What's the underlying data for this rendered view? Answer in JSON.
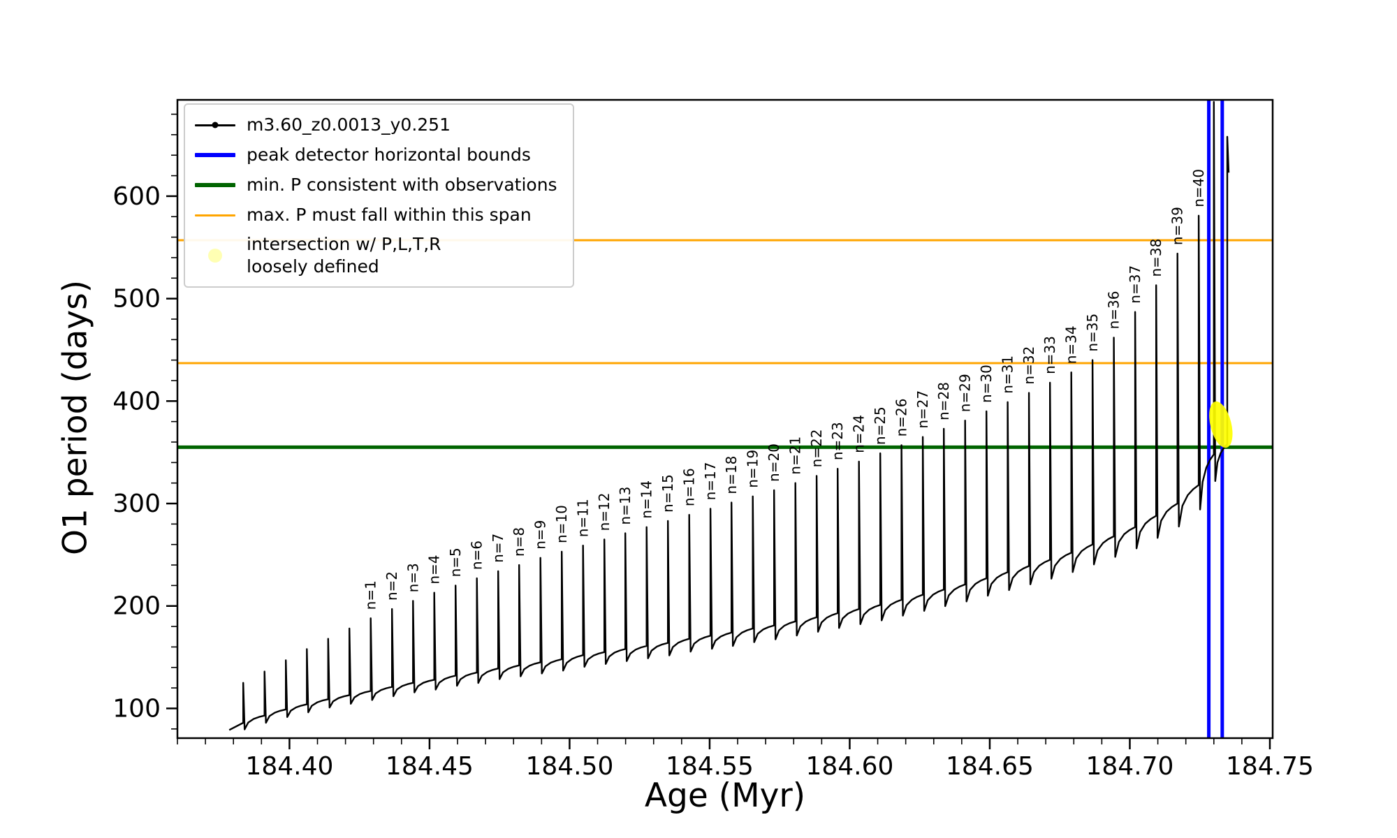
{
  "figure": {
    "background": "#ffffff"
  },
  "chart_data": {
    "type": "line",
    "title": "",
    "xlabel": "Age (Myr)",
    "ylabel": "O1 period (days)",
    "series_name": "m3.60_z0.0013_y0.251",
    "line_color": "#000000",
    "xlim": [
      184.36,
      184.751
    ],
    "ylim": [
      71,
      694
    ],
    "x_ticks": [
      184.4,
      184.45,
      184.5,
      184.55,
      184.6,
      184.65,
      184.7,
      184.75
    ],
    "y_ticks": [
      100,
      200,
      300,
      400,
      500,
      600
    ],
    "x_minor_step": 0.01,
    "y_minor_step": 20,
    "grid": false,
    "legend_position": "upper left",
    "hlines": [
      {
        "name": "min. P consistent with observations",
        "y": 355,
        "color": "#006400",
        "width": 5
      },
      {
        "name": "max. P span lower bound",
        "y": 437,
        "color": "#ffa500",
        "width": 3
      },
      {
        "name": "max. P span upper bound",
        "y": 557,
        "color": "#ffa500",
        "width": 3
      }
    ],
    "vlines": [
      {
        "name": "peak detector left bound",
        "x": 184.7282,
        "color": "#0000ff",
        "width": 5
      },
      {
        "name": "peak detector right bound",
        "x": 184.733,
        "color": "#0000ff",
        "width": 5
      }
    ],
    "highlight": {
      "name": "intersection w/ P,L,T,R loosely defined",
      "x": 184.7325,
      "y": 377,
      "color": "#ffff00"
    },
    "spikes": [
      [
        184.3835,
        86,
        125,
        ""
      ],
      [
        184.3911,
        93,
        136,
        ""
      ],
      [
        184.3987,
        99,
        147,
        ""
      ],
      [
        184.4062,
        104,
        158,
        ""
      ],
      [
        184.4138,
        109,
        168,
        ""
      ],
      [
        184.4214,
        113,
        178,
        ""
      ],
      [
        184.429,
        117,
        188,
        "n=1"
      ],
      [
        184.4366,
        121,
        197,
        "n=2"
      ],
      [
        184.4441,
        125,
        205,
        "n=3"
      ],
      [
        184.4517,
        128,
        213,
        "n=4"
      ],
      [
        184.4593,
        132,
        220,
        "n=5"
      ],
      [
        184.4669,
        135,
        227,
        "n=6"
      ],
      [
        184.4745,
        139,
        234,
        "n=7"
      ],
      [
        184.482,
        142,
        240,
        "n=8"
      ],
      [
        184.4896,
        145,
        247,
        "n=9"
      ],
      [
        184.4972,
        148,
        253,
        "n=10"
      ],
      [
        184.5048,
        152,
        259,
        "n=11"
      ],
      [
        184.5124,
        155,
        265,
        "n=12"
      ],
      [
        184.5199,
        158,
        271,
        "n=13"
      ],
      [
        184.5275,
        161,
        277,
        "n=14"
      ],
      [
        184.5351,
        164,
        283,
        "n=15"
      ],
      [
        184.5427,
        168,
        289,
        "n=16"
      ],
      [
        184.5503,
        171,
        295,
        "n=17"
      ],
      [
        184.5578,
        174,
        301,
        "n=18"
      ],
      [
        184.5654,
        178,
        307,
        "n=19"
      ],
      [
        184.573,
        181,
        313,
        "n=20"
      ],
      [
        184.5806,
        185,
        320,
        "n=21"
      ],
      [
        184.5882,
        189,
        327,
        "n=22"
      ],
      [
        184.5957,
        193,
        334,
        "n=23"
      ],
      [
        184.6033,
        197,
        341,
        "n=24"
      ],
      [
        184.6109,
        201,
        349,
        "n=25"
      ],
      [
        184.6185,
        206,
        357,
        "n=26"
      ],
      [
        184.6261,
        211,
        365,
        "n=27"
      ],
      [
        184.6336,
        216,
        373,
        "n=28"
      ],
      [
        184.6412,
        221,
        381,
        "n=29"
      ],
      [
        184.6488,
        227,
        390,
        "n=30"
      ],
      [
        184.6564,
        233,
        399,
        "n=31"
      ],
      [
        184.664,
        239,
        408,
        "n=32"
      ],
      [
        184.6715,
        245,
        418,
        "n=33"
      ],
      [
        184.6791,
        252,
        428,
        "n=34"
      ],
      [
        184.6867,
        260,
        440,
        "n=35"
      ],
      [
        184.6943,
        268,
        462,
        "n=36"
      ],
      [
        184.7019,
        277,
        487,
        "n=37"
      ],
      [
        184.7094,
        288,
        513,
        "n=38"
      ],
      [
        184.717,
        300,
        544,
        "n=39"
      ],
      [
        184.7246,
        318,
        581,
        "n=40"
      ],
      [
        184.73,
        348,
        692,
        ""
      ],
      [
        184.7348,
        358,
        658,
        ""
      ]
    ]
  },
  "legend": {
    "entries": [
      {
        "label": "m3.60_z0.0013_y0.251",
        "color": "#000000",
        "style": "line-dot",
        "thickness": 3
      },
      {
        "label": "peak detector horizontal bounds",
        "color": "#0000ff",
        "style": "line",
        "thickness": 6
      },
      {
        "label": "min. P consistent with observations",
        "color": "#006400",
        "style": "line",
        "thickness": 6
      },
      {
        "label": "max. P must fall within this span",
        "color": "#ffa500",
        "style": "line",
        "thickness": 3
      },
      {
        "label": "intersection w/ P,L,T,R\nloosely defined",
        "color": "#ffff99",
        "style": "dot",
        "thickness": 20
      }
    ]
  }
}
